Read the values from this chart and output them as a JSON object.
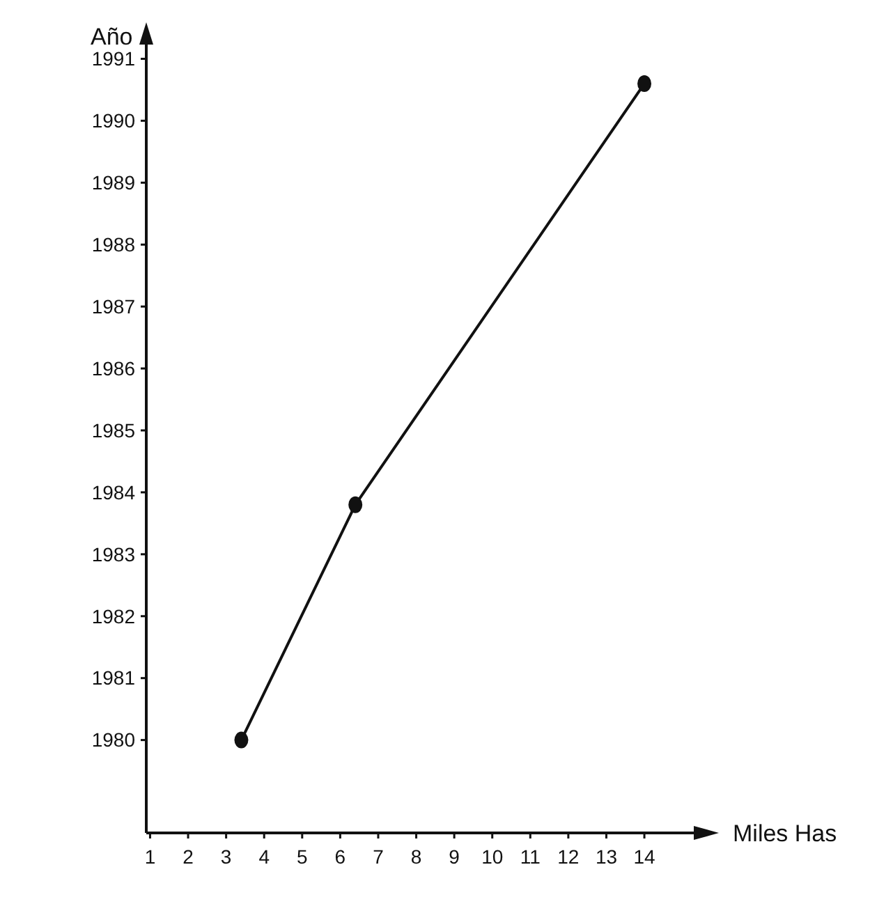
{
  "chart_data": {
    "type": "line",
    "xlabel": "Miles Has",
    "ylabel": "Año",
    "x": [
      3.4,
      6.4,
      14
    ],
    "values": [
      1980,
      1983.8,
      1990.6
    ],
    "color": "#111111",
    "marker": "circle",
    "line_style": "solid",
    "grid": false,
    "xlim": [
      0.9,
      15.3
    ],
    "xticks": [
      1,
      2,
      3,
      4,
      5,
      6,
      7,
      8,
      9,
      10,
      11,
      12,
      13,
      14
    ],
    "ylim": [
      1978.5,
      1991.5
    ],
    "yticks": [
      1980,
      1981,
      1982,
      1983,
      1984,
      1985,
      1986,
      1987,
      1988,
      1989,
      1990,
      1991
    ]
  }
}
